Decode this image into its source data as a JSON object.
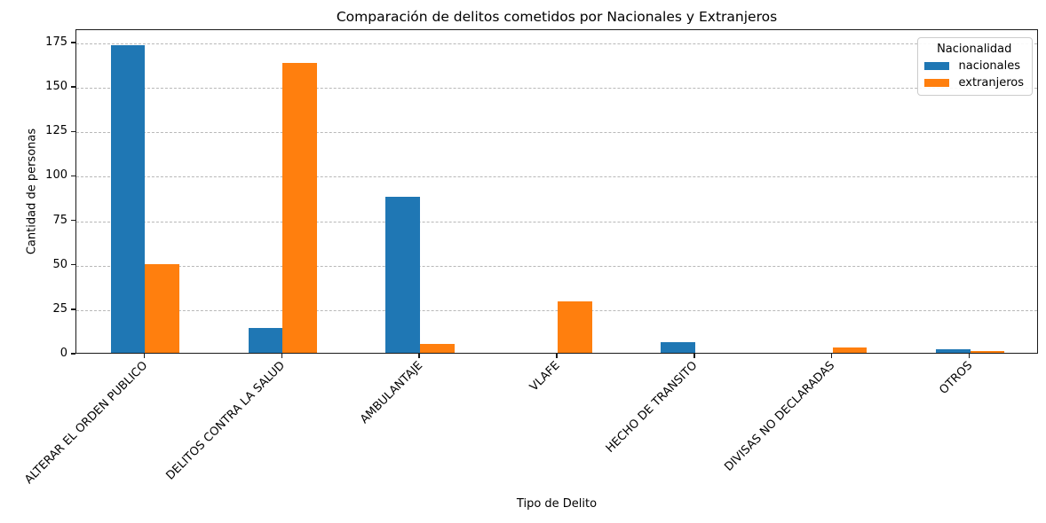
{
  "chart_data": {
    "type": "bar",
    "title": "Comparación de delitos cometidos por Nacionales y Extranjeros",
    "xlabel": "Tipo de Delito",
    "ylabel": "Cantidad de personas",
    "categories": [
      "ALTERAR EL ORDEN PUBLICO",
      "DELITOS CONTRA LA SALUD",
      "AMBULANTAJE",
      "VLAFE",
      "HECHO DE TRANSITO",
      "DIVISAS NO DECLARADAS",
      "OTROS"
    ],
    "series": [
      {
        "name": "nacionales",
        "color": "#1f77b4",
        "values": [
          174,
          14,
          88,
          0,
          6,
          0,
          2
        ]
      },
      {
        "name": "extranjeros",
        "color": "#ff7f0e",
        "values": [
          50,
          164,
          5,
          29,
          0,
          3,
          1
        ]
      }
    ],
    "yticks": [
      0,
      25,
      50,
      75,
      100,
      125,
      150,
      175
    ],
    "ylim": [
      0,
      182.5
    ],
    "grid": "horizontal-dashed",
    "grid_color": "#b8b8b8",
    "legend": {
      "title": "Nacionalidad",
      "position": "upper-right"
    }
  }
}
